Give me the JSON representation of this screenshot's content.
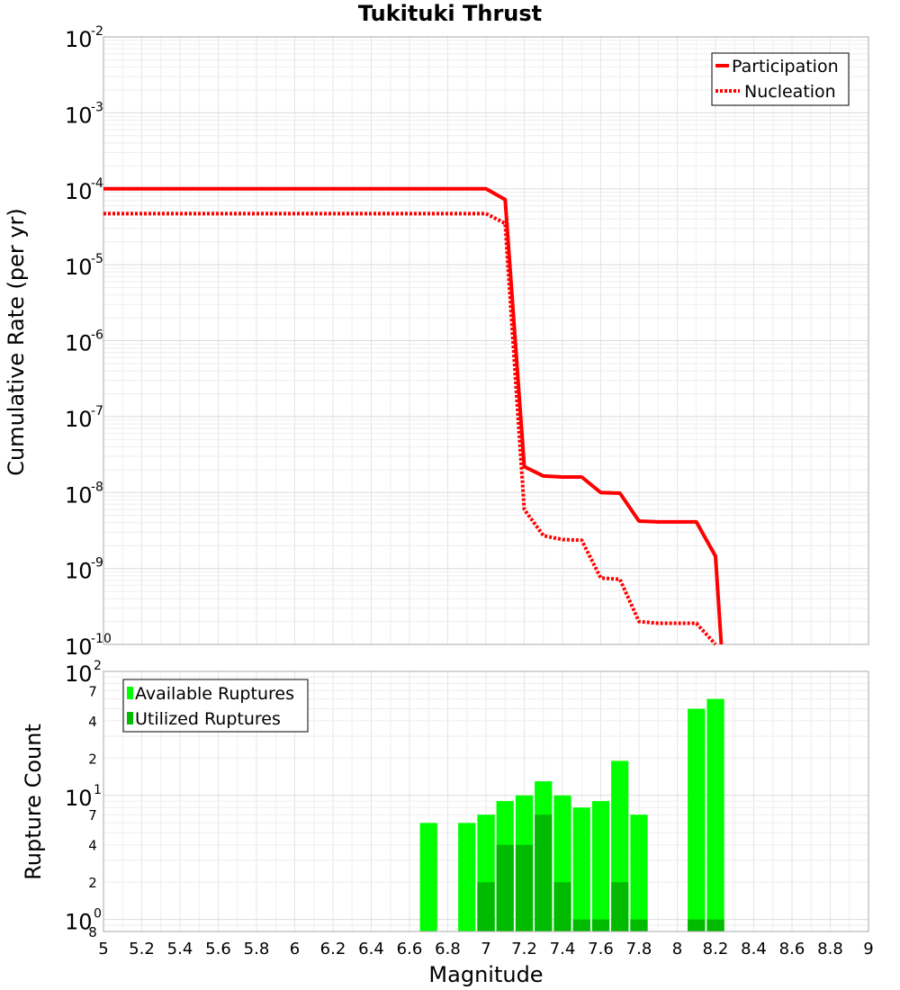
{
  "chart_data": [
    {
      "type": "line",
      "title": "Tukituki Thrust",
      "xlabel": "",
      "ylabel": "Cumulative Rate (per yr)",
      "xlim": [
        5,
        9
      ],
      "ylim": [
        1e-10,
        0.01
      ],
      "yscale": "log",
      "y_tick_exponents": [
        -10,
        -9,
        -8,
        -7,
        -6,
        -5,
        -4,
        -3,
        -2
      ],
      "grid": true,
      "legend_placement": "top-right",
      "series": [
        {
          "name": "Participation",
          "style": "solid",
          "color": "#ff0000",
          "points": [
            [
              5.0,
              0.0001
            ],
            [
              7.0,
              0.0001
            ],
            [
              7.1,
              7.2e-05
            ],
            [
              7.2,
              2.2e-08
            ],
            [
              7.3,
              1.65e-08
            ],
            [
              7.4,
              1.6e-08
            ],
            [
              7.5,
              1.6e-08
            ],
            [
              7.6,
              1e-08
            ],
            [
              7.7,
              9.8e-09
            ],
            [
              7.8,
              4.2e-09
            ],
            [
              7.9,
              4.1e-09
            ],
            [
              8.0,
              4.1e-09
            ],
            [
              8.1,
              4.1e-09
            ],
            [
              8.2,
              1.45e-09
            ],
            [
              8.23,
              1e-10
            ]
          ]
        },
        {
          "name": "Nucleation",
          "style": "dotted",
          "color": "#ff0000",
          "points": [
            [
              5.0,
              4.7e-05
            ],
            [
              7.0,
              4.7e-05
            ],
            [
              7.1,
              3.5e-05
            ],
            [
              7.2,
              6e-09
            ],
            [
              7.3,
              2.7e-09
            ],
            [
              7.4,
              2.4e-09
            ],
            [
              7.5,
              2.35e-09
            ],
            [
              7.6,
              7.5e-10
            ],
            [
              7.7,
              7.2e-10
            ],
            [
              7.8,
              2e-10
            ],
            [
              7.9,
              1.9e-10
            ],
            [
              8.0,
              1.9e-10
            ],
            [
              8.1,
              1.9e-10
            ],
            [
              8.2,
              1e-10
            ]
          ]
        }
      ]
    },
    {
      "type": "bar",
      "title": "",
      "xlabel": "Magnitude",
      "ylabel": "Rupture Count",
      "xlim": [
        5,
        9
      ],
      "ylim": [
        0.8,
        100
      ],
      "yscale": "log",
      "x_ticks": [
        "5",
        "5.2",
        "5.4",
        "5.6",
        "5.8",
        "6",
        "6.2",
        "6.4",
        "6.6",
        "6.8",
        "7",
        "7.2",
        "7.4",
        "7.6",
        "7.8",
        "8",
        "8.2",
        "8.4",
        "8.6",
        "8.8",
        "9"
      ],
      "y_major_ticks": [
        {
          "base": "10",
          "exp": "0",
          "value": 1
        },
        {
          "base": "10",
          "exp": "1",
          "value": 10
        },
        {
          "base": "10",
          "exp": "2",
          "value": 100
        }
      ],
      "y_minor_ticks": [
        {
          "label": "8",
          "value": 0.8
        },
        {
          "label": "2",
          "value": 2
        },
        {
          "label": "4",
          "value": 4
        },
        {
          "label": "7",
          "value": 7
        },
        {
          "label": "2",
          "value": 20
        },
        {
          "label": "4",
          "value": 40
        },
        {
          "label": "7",
          "value": 70
        }
      ],
      "grid": true,
      "legend_placement": "top-left",
      "bar_width": 0.1,
      "series": [
        {
          "name": "Available Ruptures",
          "color": "#00ff00",
          "x": [
            6.7,
            6.9,
            7.0,
            7.1,
            7.2,
            7.3,
            7.4,
            7.5,
            7.6,
            7.7,
            7.8,
            8.1,
            8.2
          ],
          "values": [
            6,
            6,
            7,
            9,
            10,
            13,
            10,
            8,
            9,
            19,
            7,
            50,
            60
          ]
        },
        {
          "name": "Utilized Ruptures",
          "color": "#00bb00",
          "x": [
            7.0,
            7.1,
            7.2,
            7.3,
            7.4,
            7.5,
            7.6,
            7.7,
            7.8,
            8.1,
            8.2
          ],
          "values": [
            2,
            4,
            4,
            7,
            2,
            1,
            1,
            2,
            1,
            1,
            1
          ]
        }
      ]
    }
  ]
}
